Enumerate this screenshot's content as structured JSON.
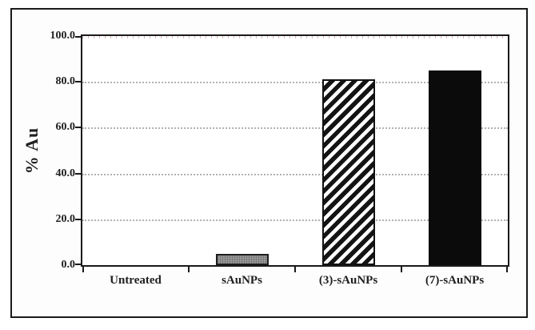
{
  "figure": {
    "background": "#fdfdfd",
    "border_color": "#1a1a1a"
  },
  "chart_data": {
    "type": "bar",
    "title": "",
    "categories": [
      "Untreated",
      "sAuNPs",
      "(3)-sAuNPs",
      "(7)-sAuNPs"
    ],
    "values": [
      0,
      5,
      81,
      85
    ],
    "xlabel": "",
    "ylabel": "% Au",
    "ylim": [
      0,
      100
    ],
    "ytick_values": [
      100,
      80,
      60,
      40,
      20,
      0
    ],
    "ytick_labels": [
      "100.0",
      "80.0",
      "60.0",
      "40.0",
      "20.0",
      "0.0"
    ],
    "grid": "horizontal dotted gridlines at 20-unit intervals",
    "legend": "none",
    "bar_styles": [
      {
        "category": "Untreated",
        "fill": "none"
      },
      {
        "category": "sAuNPs",
        "fill": "gray-stipple"
      },
      {
        "category": "(3)-sAuNPs",
        "fill": "diagonal-hatch"
      },
      {
        "category": "(7)-sAuNPs",
        "fill": "solid-black"
      }
    ],
    "colors": {
      "axis": "#1a1a1a",
      "gridline": "#aeb4ae",
      "gray_bar": "#8e8e8e",
      "black_bar": "#0b0b0b",
      "hatch_stripe": "#141414"
    }
  }
}
